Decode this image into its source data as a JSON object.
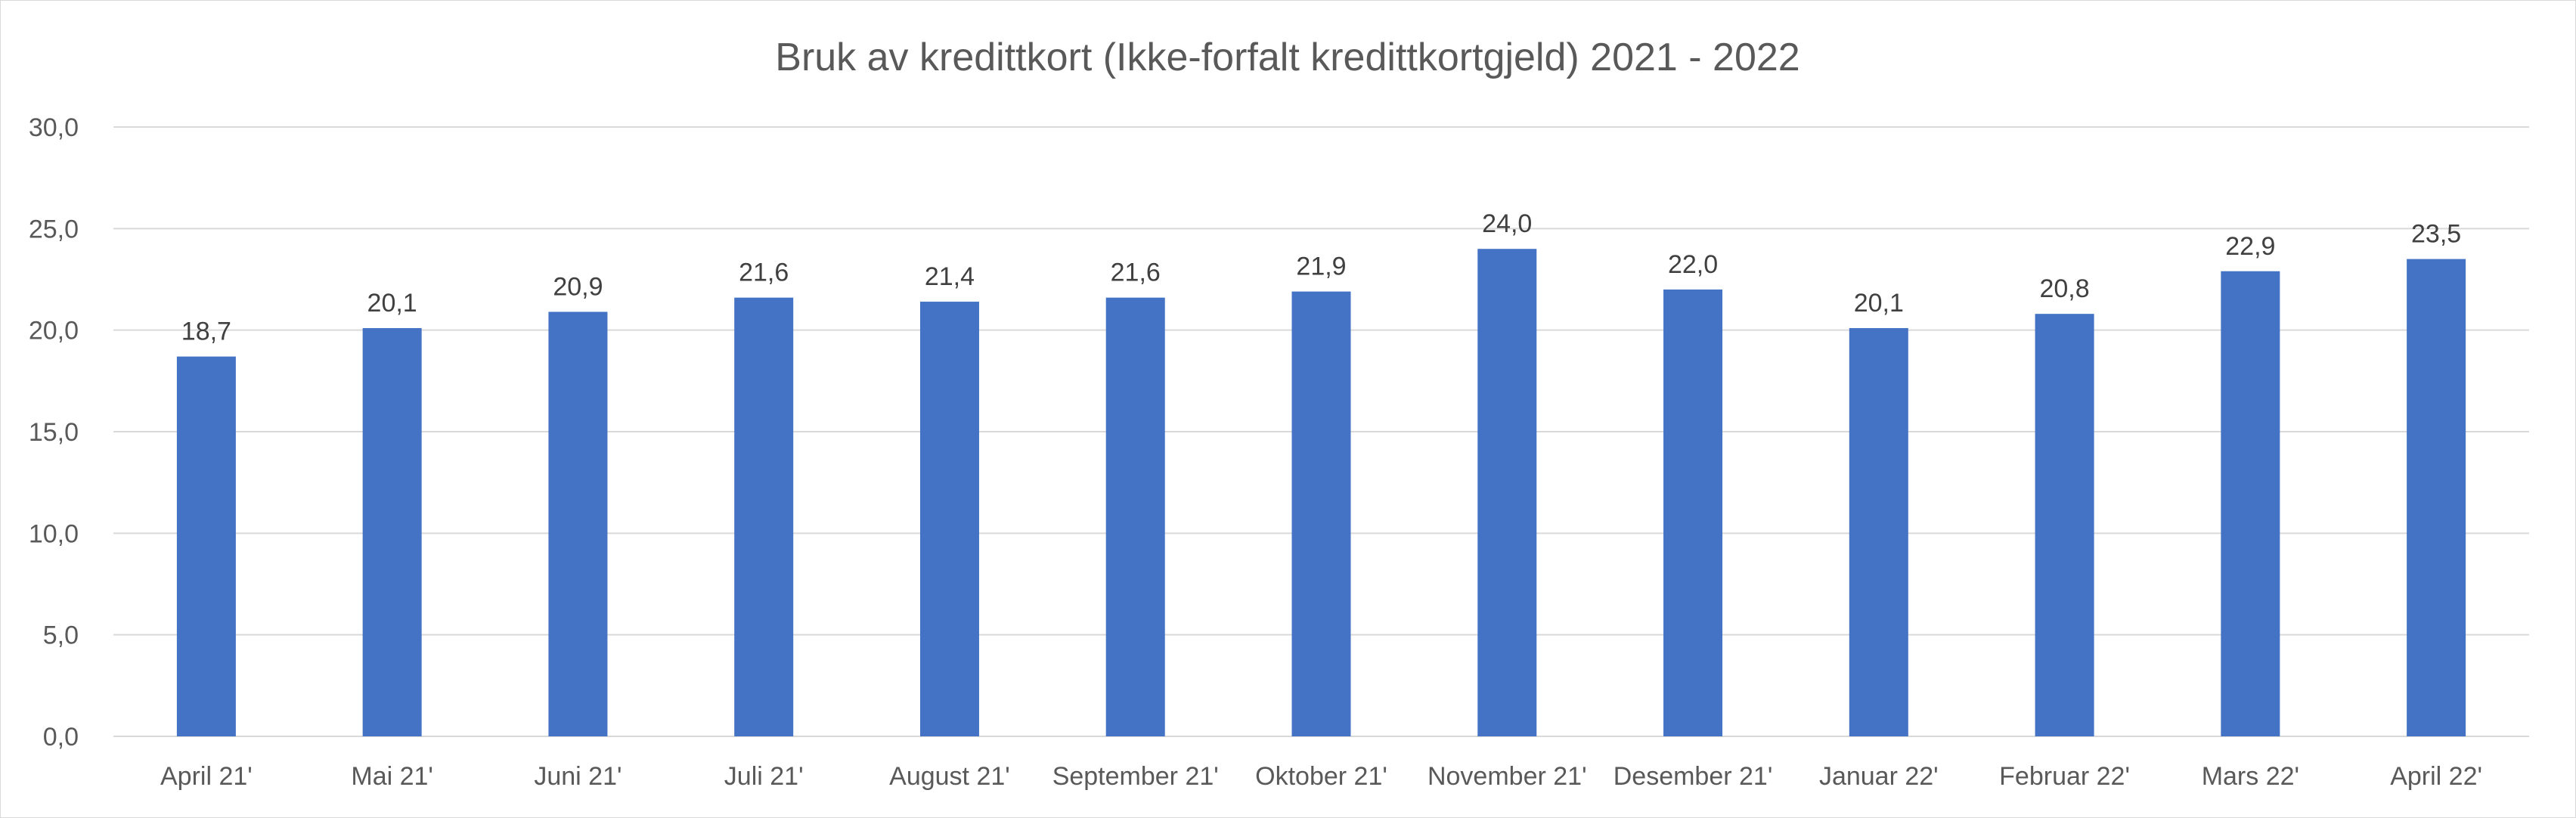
{
  "chart_data": {
    "type": "bar",
    "title": "Bruk av kredittkort (Ikke-forfalt kredittkortgjeld) 2021 - 2022",
    "xlabel": "",
    "ylabel": "",
    "categories": [
      "April 21'",
      "Mai 21'",
      "Juni 21'",
      "Juli 21'",
      "August 21'",
      "September 21'",
      "Oktober 21'",
      "November 21'",
      "Desember 21'",
      "Januar 22'",
      "Februar 22'",
      "Mars 22'",
      "April 22'"
    ],
    "values": [
      18.7,
      20.1,
      20.9,
      21.6,
      21.4,
      21.6,
      21.9,
      24.0,
      22.0,
      20.1,
      20.8,
      22.9,
      23.5
    ],
    "data_labels": [
      "18,7",
      "20,1",
      "20,9",
      "21,6",
      "21,4",
      "21,6",
      "21,9",
      "24,0",
      "22,0",
      "20,1",
      "20,8",
      "22,9",
      "23,5"
    ],
    "ylim": [
      0,
      30
    ],
    "yticks": [
      0,
      5,
      10,
      15,
      20,
      25,
      30
    ],
    "ytick_labels": [
      "0,0",
      "5,0",
      "10,0",
      "15,0",
      "20,0",
      "25,0",
      "30,0"
    ],
    "grid": true,
    "legend": "none",
    "colors": {
      "bar": "#4472c4",
      "grid": "#d9d9d9",
      "text": "#595959"
    }
  }
}
